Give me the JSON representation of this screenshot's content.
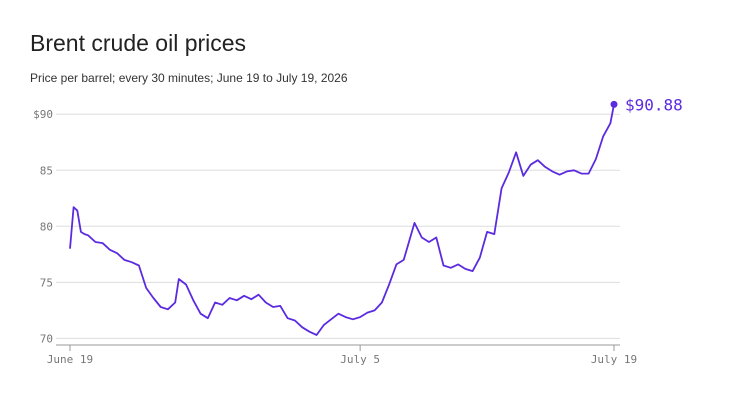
{
  "chart_data": {
    "type": "line",
    "title": "Brent crude oil prices",
    "subtitle": "Price per barrel; every 30 minutes; June 19 to July 19, 2026",
    "xlabel": "",
    "ylabel": "",
    "ylim": [
      69.5,
      91
    ],
    "xlim": [
      "2026-06-19",
      "2026-07-19"
    ],
    "grid": true,
    "y_ticks": [
      {
        "value": 90,
        "label": "$90"
      },
      {
        "value": 85,
        "label": "85"
      },
      {
        "value": 80,
        "label": "80"
      },
      {
        "value": 75,
        "label": "75"
      },
      {
        "value": 70,
        "label": "70"
      }
    ],
    "x_ticks": [
      {
        "value": "2026-06-19",
        "label": "June 19"
      },
      {
        "value": "2026-07-05",
        "label": "July 5"
      },
      {
        "value": "2026-07-19",
        "label": "July 19"
      }
    ],
    "series": [
      {
        "color": "#5b2be0",
        "x": [
          "2026-06-19T00:00",
          "2026-06-19T04:48",
          "2026-06-19T09:36",
          "2026-06-19T14:24",
          "2026-06-19T19:12",
          "2026-06-20T00:00",
          "2026-06-20T09:36",
          "2026-06-20T19:12",
          "2026-06-21T04:48",
          "2026-06-21T14:24",
          "2026-06-22T00:00",
          "2026-06-22T09:36",
          "2026-06-22T19:12",
          "2026-06-23T04:48",
          "2026-06-23T14:24",
          "2026-06-24T00:00",
          "2026-06-24T09:36",
          "2026-06-24T19:12",
          "2026-06-25T00:00",
          "2026-06-25T09:36",
          "2026-06-25T19:12",
          "2026-06-26T04:48",
          "2026-06-26T14:24",
          "2026-06-27T00:00",
          "2026-06-27T09:36",
          "2026-06-27T19:12",
          "2026-06-28T04:48",
          "2026-06-28T14:24",
          "2026-06-29T00:00",
          "2026-06-29T09:36",
          "2026-06-29T19:12",
          "2026-06-30T04:48",
          "2026-06-30T14:24",
          "2026-07-01T00:00",
          "2026-07-01T09:36",
          "2026-07-01T19:12",
          "2026-07-02T04:48",
          "2026-07-02T14:24",
          "2026-07-03T00:00",
          "2026-07-03T09:36",
          "2026-07-03T19:12",
          "2026-07-04T04:48",
          "2026-07-04T14:24",
          "2026-07-05T00:00",
          "2026-07-05T09:36",
          "2026-07-05T19:12",
          "2026-07-06T04:48",
          "2026-07-06T14:24",
          "2026-07-07T00:00",
          "2026-07-07T09:36",
          "2026-07-07T19:12",
          "2026-07-08T00:00",
          "2026-07-08T09:36",
          "2026-07-08T19:12",
          "2026-07-09T04:48",
          "2026-07-09T14:24",
          "2026-07-10T00:00",
          "2026-07-10T09:36",
          "2026-07-10T19:12",
          "2026-07-11T04:48",
          "2026-07-11T14:24",
          "2026-07-12T00:00",
          "2026-07-12T09:36",
          "2026-07-12T19:12",
          "2026-07-13T04:48",
          "2026-07-13T14:24",
          "2026-07-14T00:00",
          "2026-07-14T09:36",
          "2026-07-14T19:12",
          "2026-07-15T04:48",
          "2026-07-15T14:24",
          "2026-07-16T00:00",
          "2026-07-16T09:36",
          "2026-07-16T19:12",
          "2026-07-17T04:48",
          "2026-07-17T14:24",
          "2026-07-18T00:00",
          "2026-07-18T09:36",
          "2026-07-18T19:12",
          "2026-07-19T00:00"
        ],
        "values": [
          78.0,
          81.7,
          81.4,
          79.5,
          79.3,
          79.2,
          78.6,
          78.5,
          77.9,
          77.6,
          77.0,
          76.8,
          76.5,
          74.5,
          73.6,
          72.8,
          72.6,
          73.2,
          75.3,
          74.8,
          73.4,
          72.2,
          71.8,
          73.2,
          73.0,
          73.6,
          73.4,
          73.8,
          73.5,
          73.9,
          73.2,
          72.8,
          72.9,
          71.8,
          71.6,
          71.0,
          70.6,
          70.3,
          71.2,
          71.7,
          72.2,
          71.9,
          71.7,
          71.9,
          72.3,
          72.5,
          73.2,
          74.8,
          76.6,
          77.0,
          79.2,
          80.3,
          79.0,
          78.6,
          79.0,
          76.5,
          76.3,
          76.6,
          76.2,
          76.0,
          77.2,
          79.5,
          79.3,
          83.4,
          84.8,
          86.6,
          84.5,
          85.5,
          85.9,
          85.3,
          84.9,
          84.6,
          84.9,
          85.0,
          84.7,
          84.7,
          86.0,
          88.0,
          89.2,
          90.88
        ]
      }
    ],
    "end_value": 90.88,
    "end_label": "$90.88"
  }
}
